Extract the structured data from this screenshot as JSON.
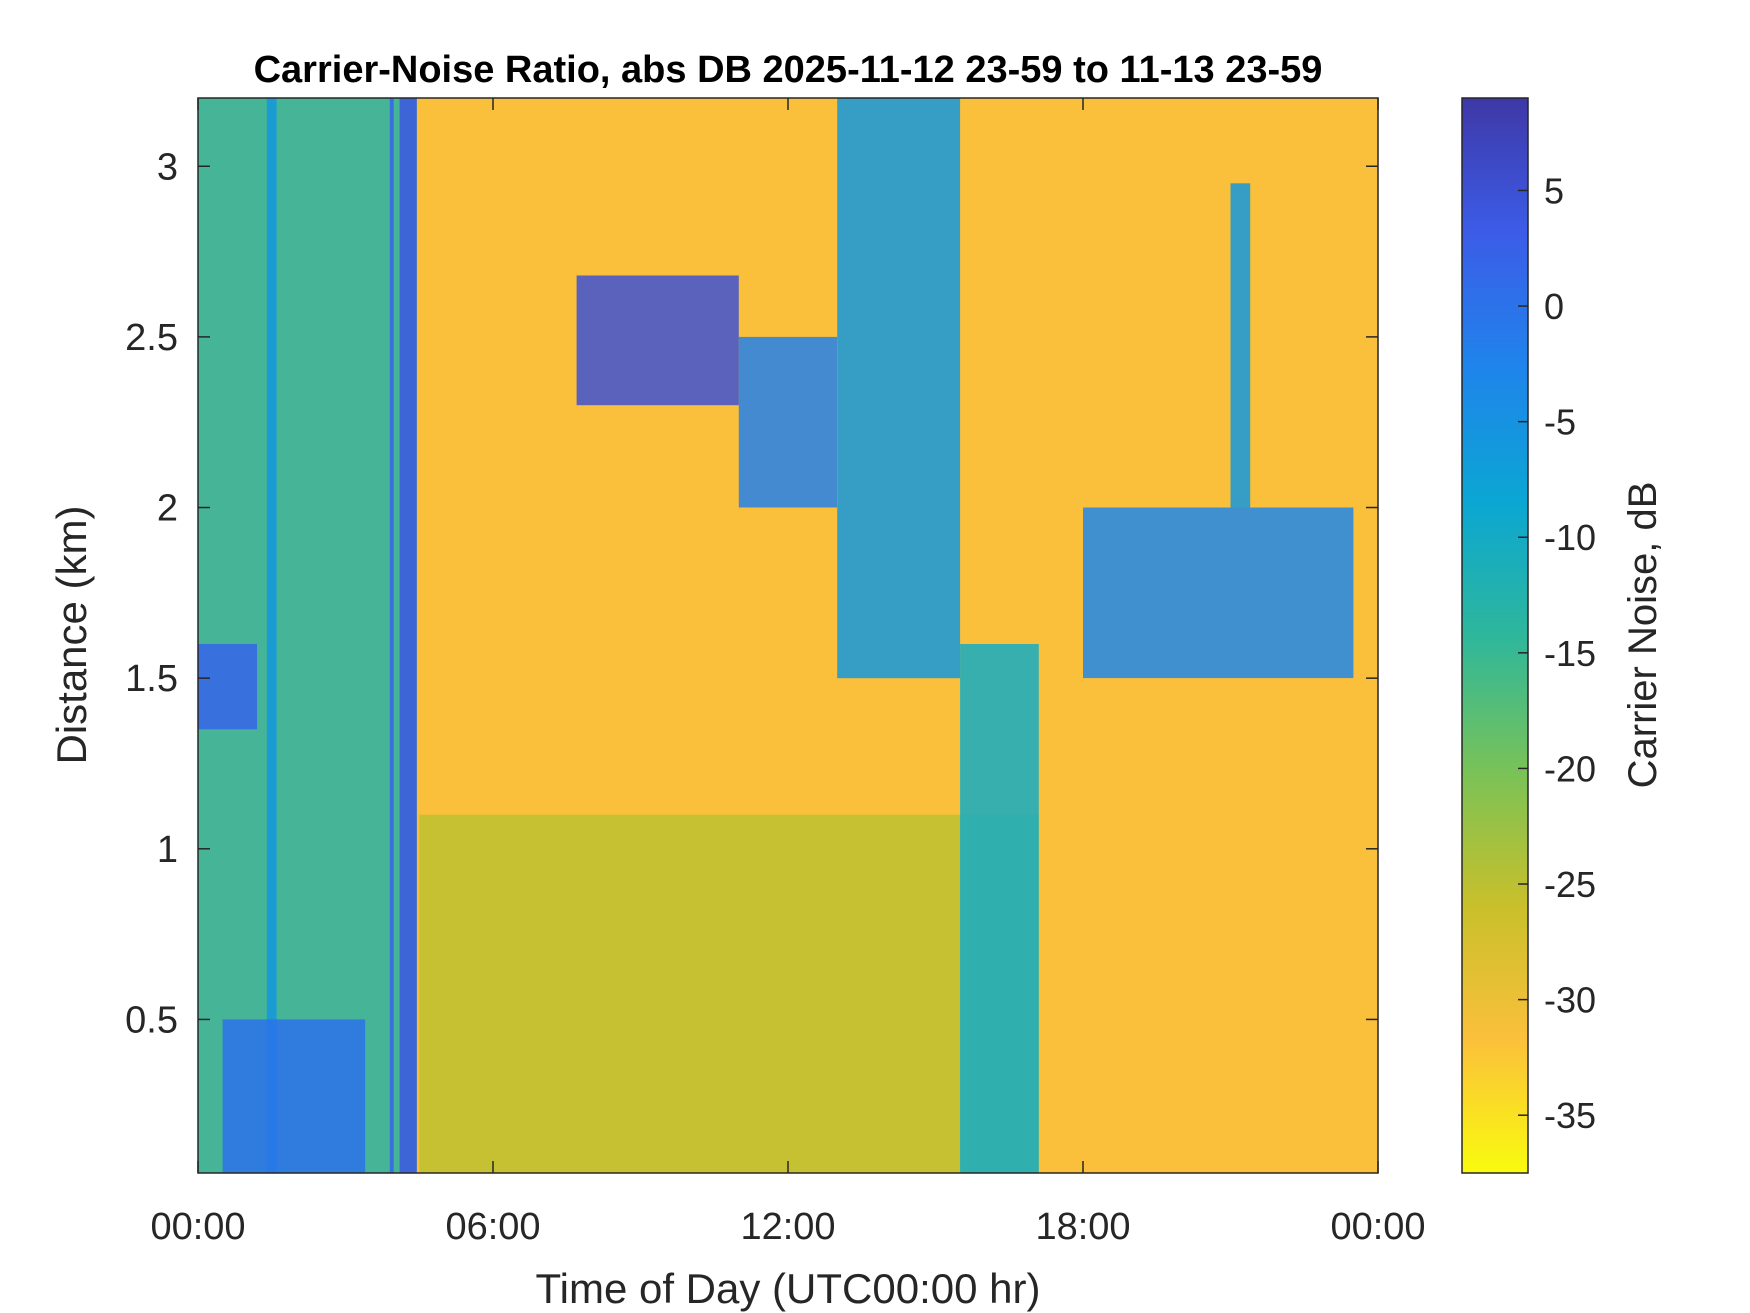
{
  "chart_data": {
    "type": "heatmap",
    "title": "Carrier-Noise Ratio, abs DB 2025-11-12 23-59 to 11-13 23-59",
    "xlabel": "Time of Day (UTC00:00 hr)",
    "ylabel": "Distance (km)",
    "colorbar_label": "Carrier Noise, dB",
    "xlim_hours": [
      0,
      24
    ],
    "ylim_km": [
      0.05,
      3.2
    ],
    "x_ticks": [
      {
        "hour": 0,
        "label": "00:00"
      },
      {
        "hour": 6,
        "label": "06:00"
      },
      {
        "hour": 12,
        "label": "12:00"
      },
      {
        "hour": 18,
        "label": "18:00"
      },
      {
        "hour": 24,
        "label": "00:00"
      }
    ],
    "y_ticks": [
      {
        "km": 0.5,
        "label": "0.5"
      },
      {
        "km": 1,
        "label": "1"
      },
      {
        "km": 1.5,
        "label": "1.5"
      },
      {
        "km": 2,
        "label": "2"
      },
      {
        "km": 2.5,
        "label": "2.5"
      },
      {
        "km": 3,
        "label": "3"
      }
    ],
    "clim_db": [
      -37.5,
      9
    ],
    "colorbar_ticks": [
      {
        "db": 5,
        "label": "5"
      },
      {
        "db": 0,
        "label": "0"
      },
      {
        "db": -5,
        "label": "-5"
      },
      {
        "db": -10,
        "label": "-10"
      },
      {
        "db": -15,
        "label": "-15"
      },
      {
        "db": -20,
        "label": "-20"
      },
      {
        "db": -25,
        "label": "-25"
      },
      {
        "db": -30,
        "label": "-30"
      },
      {
        "db": -35,
        "label": "-35"
      }
    ],
    "colormap": [
      "#f9fb0e",
      "#fbc03b",
      "#c8c02b",
      "#78c258",
      "#2eb79c",
      "#0ba6d3",
      "#1f84eb",
      "#3c5ce8",
      "#3e38a6"
    ],
    "background_db": -30,
    "grid": false,
    "features": [
      {
        "name": "low-range wet band",
        "hour_start": 4.5,
        "hour_end": 17.1,
        "km_start": 0.05,
        "km_end": 1.1,
        "db": -25
      },
      {
        "name": "cloud/rain column",
        "hour_start": 0.0,
        "hour_end": 4.45,
        "km_start": 0.05,
        "km_end": 3.2,
        "db": -13
      },
      {
        "name": "strong echo column",
        "hour_start": 4.1,
        "hour_end": 4.45,
        "km_start": 0.05,
        "km_end": 3.2,
        "db": 4
      },
      {
        "name": "strong echo column",
        "hour_start": 3.9,
        "hour_end": 3.98,
        "km_start": 0.05,
        "km_end": 3.2,
        "db": 2
      },
      {
        "name": "strong echo column",
        "hour_start": 1.4,
        "hour_end": 1.6,
        "km_start": 0.05,
        "km_end": 3.2,
        "db": -6
      },
      {
        "name": "boundary layer top",
        "hour_start": 0.0,
        "hour_end": 1.2,
        "km_start": 1.35,
        "km_end": 1.6,
        "db": 2
      },
      {
        "name": "near-ground echo",
        "hour_start": 0.5,
        "hour_end": 3.4,
        "km_start": 0.05,
        "km_end": 0.5,
        "db": 0
      },
      {
        "name": "cloud layer",
        "hour_start": 7.7,
        "hour_end": 11.0,
        "km_start": 2.3,
        "km_end": 2.68,
        "db": 5
      },
      {
        "name": "cloud layer",
        "hour_start": 11.0,
        "hour_end": 13.0,
        "km_start": 2.0,
        "km_end": 2.5,
        "db": -2
      },
      {
        "name": "descending precipitation",
        "hour_start": 13.0,
        "hour_end": 15.5,
        "km_start": 1.5,
        "km_end": 3.2,
        "db": -6
      },
      {
        "name": "descending precipitation",
        "hour_start": 15.5,
        "hour_end": 17.1,
        "km_start": 0.05,
        "km_end": 1.6,
        "db": -10
      },
      {
        "name": "scattered cloud",
        "hour_start": 18.0,
        "hour_end": 23.5,
        "km_start": 1.5,
        "km_end": 2.0,
        "db": -3
      },
      {
        "name": "cloud plume",
        "hour_start": 21.0,
        "hour_end": 21.4,
        "km_start": 2.0,
        "km_end": 2.95,
        "db": -6
      }
    ]
  }
}
